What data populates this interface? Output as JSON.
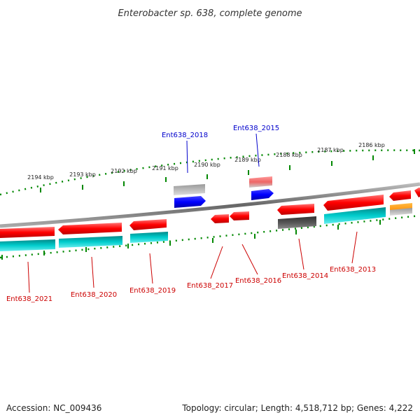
{
  "title": "Enterobacter sp. 638, complete genome",
  "accession": "Accession: NC_009436",
  "topology": "Topology: circular; Length: 4,518,712 bp; Genes: 4,222",
  "ruler_labels": [
    "2194 kbp",
    "2193 kbp",
    "2192 kbp",
    "2191 kbp",
    "2190 kbp",
    "2189 kbp",
    "2188 kbp",
    "2187 kbp",
    "2186 kbp"
  ],
  "genes_forward": [
    "Ent638_2018",
    "Ent638_2015"
  ],
  "genes_reverse": [
    "Ent638_2021",
    "Ent638_2020",
    "Ent638_2019",
    "Ent638_2017",
    "Ent638_2016",
    "Ent638_2014",
    "Ent638_2013"
  ],
  "colors": {
    "forward_label": "#0000cc",
    "reverse_label": "#cc0000",
    "cds_red": "#ff0000",
    "cds_blue": "#0000ff",
    "cds_cyan": "#00cccc",
    "cds_orange": "#ff9900",
    "cds_grey": "#aaaaaa",
    "cds_darkgrey": "#555555",
    "cds_pink": "#ee6666",
    "tick_green": "#008800",
    "backbone": "#777777"
  }
}
